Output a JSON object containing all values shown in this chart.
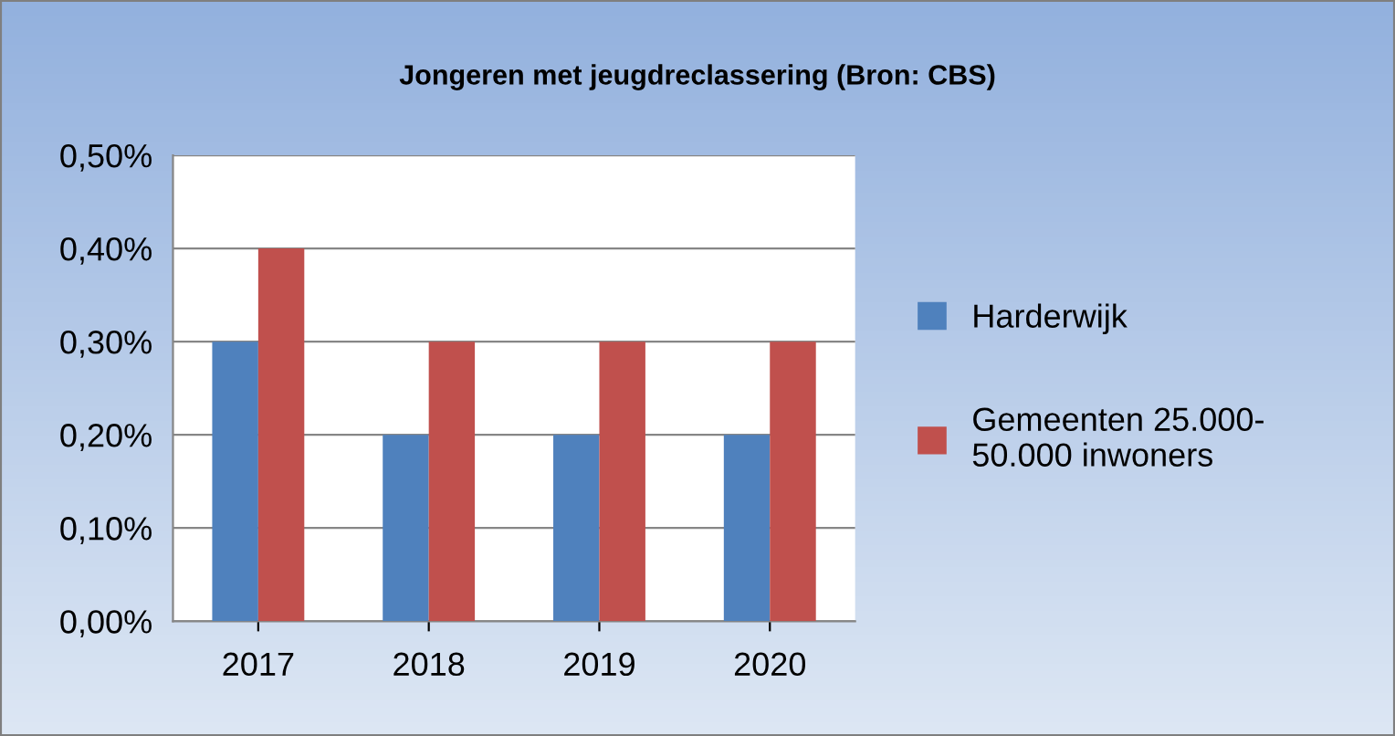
{
  "chart_data": {
    "type": "bar",
    "title": "Jongeren met jeugdreclassering (Bron: CBS)",
    "categories": [
      "2017",
      "2018",
      "2019",
      "2020"
    ],
    "series": [
      {
        "name": "Harderwijk",
        "color": "#4f81bd",
        "values": [
          0.3,
          0.2,
          0.2,
          0.2
        ]
      },
      {
        "name": "Gemeenten 25.000-\n50.000 inwoners",
        "color": "#c0504d",
        "values": [
          0.4,
          0.3,
          0.3,
          0.3
        ]
      }
    ],
    "ylim": [
      0,
      0.5
    ],
    "yticks": [
      {
        "value": 0,
        "label": "0,00%"
      },
      {
        "value": 0.1,
        "label": "0,10%"
      },
      {
        "value": 0.2,
        "label": "0,20%"
      },
      {
        "value": 0.3,
        "label": "0,30%"
      },
      {
        "value": 0.4,
        "label": "0,40%"
      },
      {
        "value": 0.5,
        "label": "0,50%"
      }
    ],
    "grid": "y",
    "legend": "right"
  }
}
